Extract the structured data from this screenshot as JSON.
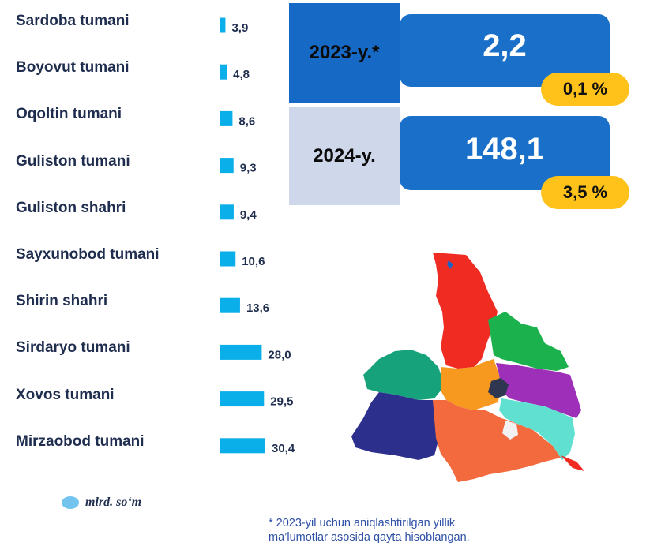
{
  "chart_data": {
    "type": "bar",
    "orientation": "horizontal",
    "categories": [
      "Sardoba tumani",
      "Boyovut tumani",
      "Oqoltin tumani",
      "Guliston tumani",
      "Guliston shahri",
      "Sayxunobod tumani",
      "Shirin shahri",
      "Sirdaryo tumani",
      "Xovos tumani",
      "Mirzaobod tumani"
    ],
    "values": [
      3.9,
      4.8,
      8.6,
      9.3,
      9.4,
      10.6,
      13.6,
      28.0,
      29.5,
      30.4
    ],
    "value_labels": [
      "3,9",
      "4,8",
      "8,6",
      "9,3",
      "9,4",
      "10,6",
      "13,6",
      "28,0",
      "29,5",
      "30,4"
    ],
    "bar_color": "#0aaee8",
    "legend": "mlrd. so‘m"
  },
  "summary": {
    "y2023": {
      "label": "2023-y.*",
      "value": "2,2",
      "share": "0,1 %"
    },
    "y2024": {
      "label": "2024-y.",
      "value": "148,1",
      "share": "3,5 %"
    }
  },
  "footnote": {
    "line1": "* 2023-yil uchun aniqlashtirilgan yillik",
    "line2": "ma’lumotlar asosida qayta hisoblangan."
  },
  "colors": {
    "year2023_bg": "#1669c4",
    "year2024_bg": "#cfd8ea",
    "value_bg": "#1a6fc9",
    "pct_bg": "#ffc21a"
  }
}
